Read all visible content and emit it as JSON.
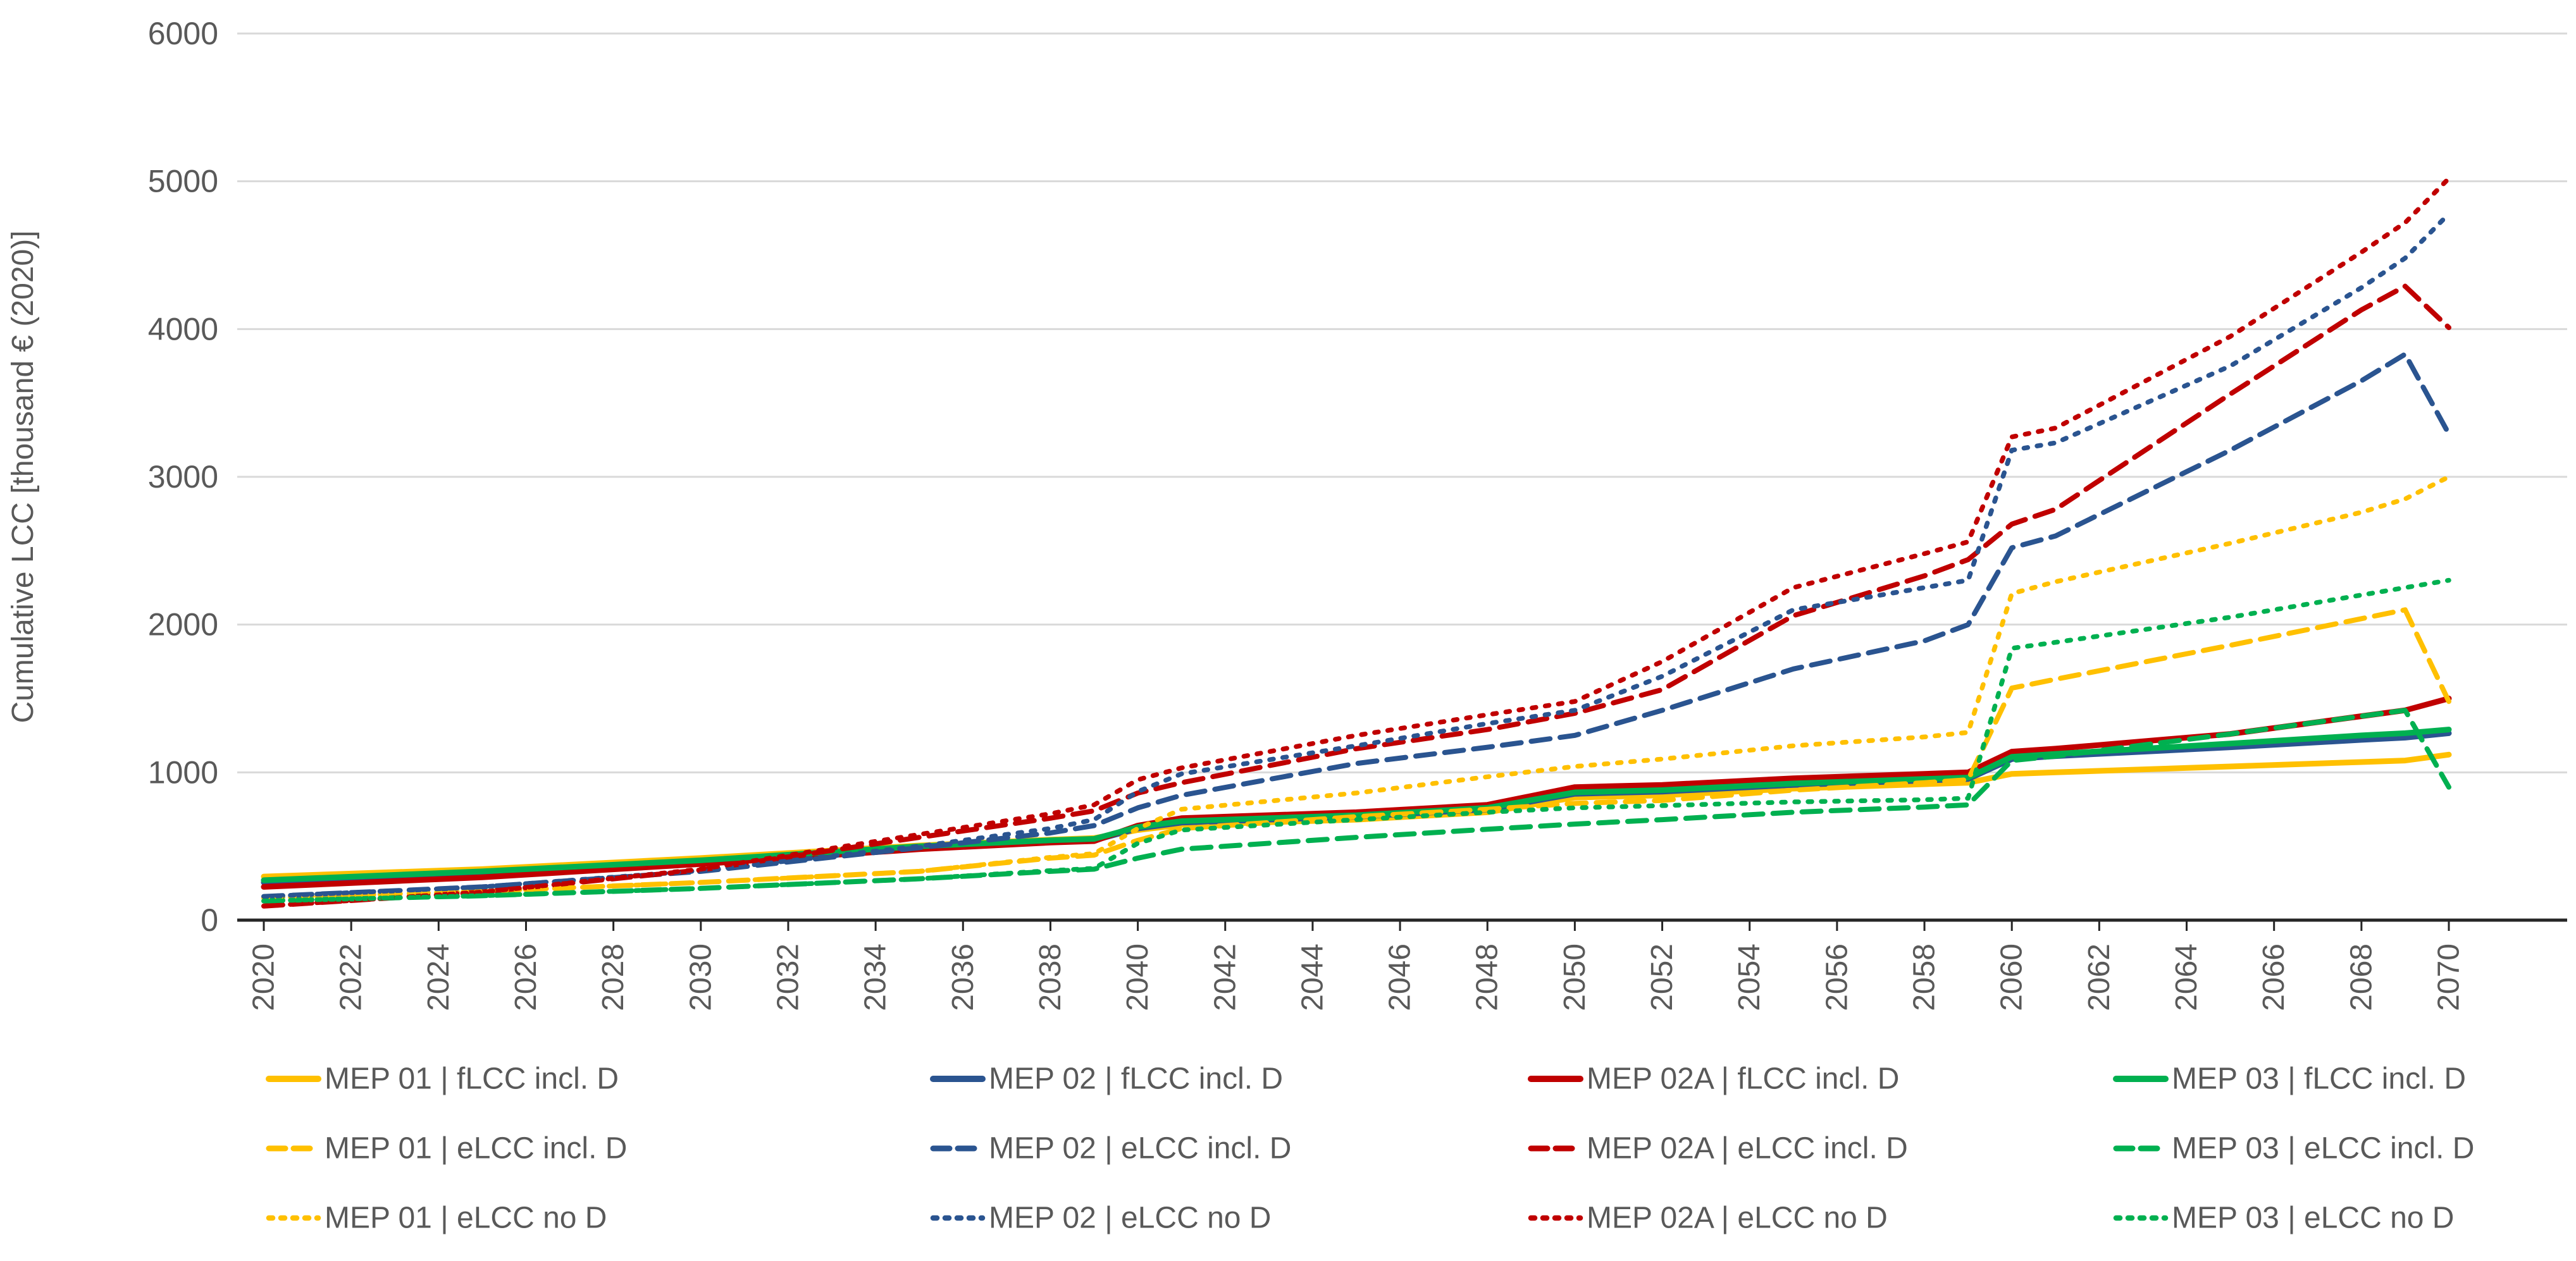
{
  "chart": {
    "background": "#ffffff",
    "text_color": "#595959",
    "gridline_color": "#d9d9d9",
    "axis_line_color": "#262626",
    "y_axis": {
      "title": "Cumulative LCC [thousand € (2020)]",
      "tick_labels": [
        "0",
        "1000",
        "2000",
        "3000",
        "4000",
        "5000",
        "6000"
      ],
      "tick_values": [
        0,
        1000,
        2000,
        3000,
        4000,
        5000,
        6000
      ]
    },
    "x_axis": {
      "tick_labels": [
        "2020",
        "2022",
        "2024",
        "2026",
        "2028",
        "2030",
        "2032",
        "2034",
        "2036",
        "2038",
        "2040",
        "2042",
        "2044",
        "2046",
        "2048",
        "2050",
        "2052",
        "2054",
        "2056",
        "2058",
        "2060",
        "2062",
        "2064",
        "2066",
        "2068",
        "2070"
      ],
      "tick_values": [
        2020,
        2022,
        2024,
        2026,
        2028,
        2030,
        2032,
        2034,
        2036,
        2038,
        2040,
        2042,
        2044,
        2046,
        2048,
        2050,
        2052,
        2054,
        2056,
        2058,
        2060,
        2062,
        2064,
        2066,
        2068,
        2070
      ]
    }
  },
  "chart_data": {
    "type": "line",
    "title": "",
    "xlabel": "",
    "ylabel": "Cumulative LCC [thousand € (2020)]",
    "ylim": [
      0,
      6000
    ],
    "xlim": [
      2020,
      2070
    ],
    "grid": "horizontal",
    "legend_position": "bottom",
    "x": [
      2020,
      2025,
      2030,
      2035,
      2038,
      2039,
      2040,
      2041,
      2045,
      2048,
      2050,
      2052,
      2055,
      2058,
      2059,
      2060,
      2061,
      2065,
      2068,
      2069,
      2070
    ],
    "series": [
      {
        "name": "MEP 01 | fLCC incl. D",
        "color": "#FFC000",
        "style": "solid",
        "values": [
          295,
          345,
          420,
          505,
          545,
          555,
          610,
          645,
          680,
          730,
          830,
          845,
          890,
          920,
          930,
          990,
          1000,
          1040,
          1070,
          1080,
          1120
        ]
      },
      {
        "name": "MEP 02 | fLCC incl. D",
        "color": "#2A5490",
        "style": "solid",
        "values": [
          255,
          315,
          390,
          490,
          530,
          540,
          620,
          660,
          700,
          750,
          855,
          870,
          915,
          945,
          955,
          1090,
          1110,
          1170,
          1220,
          1235,
          1265
        ]
      },
      {
        "name": "MEP 02A | fLCC incl. D",
        "color": "#C00000",
        "style": "solid",
        "values": [
          225,
          290,
          380,
          480,
          525,
          535,
          640,
          690,
          730,
          780,
          900,
          915,
          960,
          990,
          1000,
          1140,
          1160,
          1260,
          1380,
          1420,
          1500
        ]
      },
      {
        "name": "MEP 03 | fLCC incl. D",
        "color": "#00B050",
        "style": "solid",
        "values": [
          270,
          330,
          405,
          500,
          540,
          550,
          630,
          670,
          710,
          760,
          865,
          880,
          925,
          955,
          965,
          1105,
          1125,
          1195,
          1250,
          1265,
          1290
        ]
      },
      {
        "name": "MEP 01 | eLCC incl. D",
        "color": "#FFC000",
        "style": "dashed",
        "values": [
          150,
          195,
          255,
          330,
          420,
          440,
          540,
          620,
          700,
          750,
          790,
          810,
          880,
          930,
          950,
          1570,
          1630,
          1860,
          2040,
          2100,
          1480
        ]
      },
      {
        "name": "MEP 02 | eLCC incl. D",
        "color": "#2A5490",
        "style": "dashed",
        "values": [
          160,
          225,
          330,
          490,
          590,
          640,
          760,
          845,
          1060,
          1170,
          1250,
          1420,
          1700,
          1890,
          2000,
          2520,
          2600,
          3180,
          3650,
          3830,
          3290
        ]
      },
      {
        "name": "MEP 02A | eLCC incl. D",
        "color": "#C00000",
        "style": "dashed",
        "values": [
          95,
          190,
          340,
          560,
          690,
          740,
          860,
          930,
          1160,
          1290,
          1400,
          1560,
          2060,
          2330,
          2440,
          2680,
          2780,
          3560,
          4130,
          4290,
          4010
        ]
      },
      {
        "name": "MEP 03 | eLCC incl. D",
        "color": "#00B050",
        "style": "dashed",
        "values": [
          130,
          165,
          215,
          280,
          330,
          345,
          420,
          480,
          560,
          615,
          650,
          680,
          730,
          765,
          780,
          1080,
          1110,
          1260,
          1380,
          1420,
          900
        ]
      },
      {
        "name": "MEP 01 | eLCC no D",
        "color": "#FFC000",
        "style": "dotted",
        "values": [
          150,
          195,
          255,
          330,
          425,
          450,
          620,
          750,
          860,
          970,
          1040,
          1090,
          1180,
          1240,
          1270,
          2210,
          2290,
          2550,
          2760,
          2850,
          3000
        ]
      },
      {
        "name": "MEP 02 | eLCC no D",
        "color": "#2A5490",
        "style": "dotted",
        "values": [
          160,
          225,
          335,
          500,
          620,
          680,
          870,
          990,
          1180,
          1330,
          1420,
          1650,
          2100,
          2250,
          2300,
          3180,
          3230,
          3750,
          4280,
          4480,
          4780
        ]
      },
      {
        "name": "MEP 02A | eLCC no D",
        "color": "#C00000",
        "style": "dotted",
        "values": [
          95,
          190,
          345,
          580,
          720,
          780,
          950,
          1030,
          1250,
          1390,
          1480,
          1750,
          2250,
          2480,
          2560,
          3270,
          3330,
          3950,
          4520,
          4720,
          5020
        ]
      },
      {
        "name": "MEP 03 | eLCC no D",
        "color": "#00B050",
        "style": "dotted",
        "values": [
          130,
          165,
          215,
          280,
          335,
          350,
          520,
          610,
          680,
          730,
          760,
          775,
          800,
          815,
          825,
          1840,
          1880,
          2050,
          2200,
          2250,
          2300
        ]
      }
    ]
  }
}
